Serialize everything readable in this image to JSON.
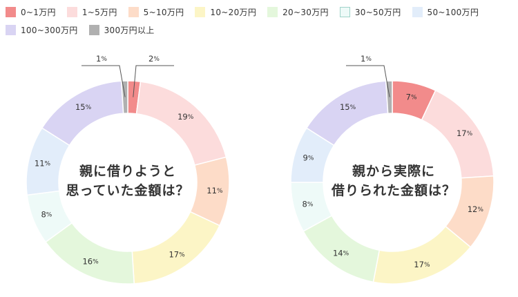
{
  "legend": {
    "items": [
      {
        "label": "0~1万円",
        "color": "#f28b8b"
      },
      {
        "label": "1~5万円",
        "color": "#fcdcdc"
      },
      {
        "label": "5~10万円",
        "color": "#fddcc8"
      },
      {
        "label": "10~20万円",
        "color": "#fcf5c6"
      },
      {
        "label": "20~30万円",
        "color": "#e4f7dc"
      },
      {
        "label": "30~50万円",
        "color": "#eefaf8"
      },
      {
        "label": "50~100万円",
        "color": "#e2edfa"
      },
      {
        "label": "100~300万円",
        "color": "#d9d4f3"
      },
      {
        "label": "300万円以上",
        "color": "#b0b0b0"
      }
    ]
  },
  "chart_data": [
    {
      "type": "pie",
      "title_lines": [
        "親に借りようと",
        "思っていた金額は？"
      ],
      "categories": [
        "0~1万円",
        "1~5万円",
        "5~10万円",
        "10~20万円",
        "20~30万円",
        "30~50万円",
        "50~100万円",
        "100~300万円",
        "300万円以上"
      ],
      "values": [
        2,
        19,
        11,
        17,
        16,
        8,
        11,
        15,
        1
      ],
      "unit": "%"
    },
    {
      "type": "pie",
      "title_lines": [
        "親から実際に",
        "借りられた金額は？"
      ],
      "categories": [
        "0~1万円",
        "1~5万円",
        "5~10万円",
        "10~20万円",
        "20~30万円",
        "30~50万円",
        "50~100万円",
        "100~300万円",
        "300万円以上"
      ],
      "values": [
        7,
        17,
        12,
        17,
        14,
        8,
        9,
        15,
        1
      ],
      "unit": "%"
    }
  ]
}
